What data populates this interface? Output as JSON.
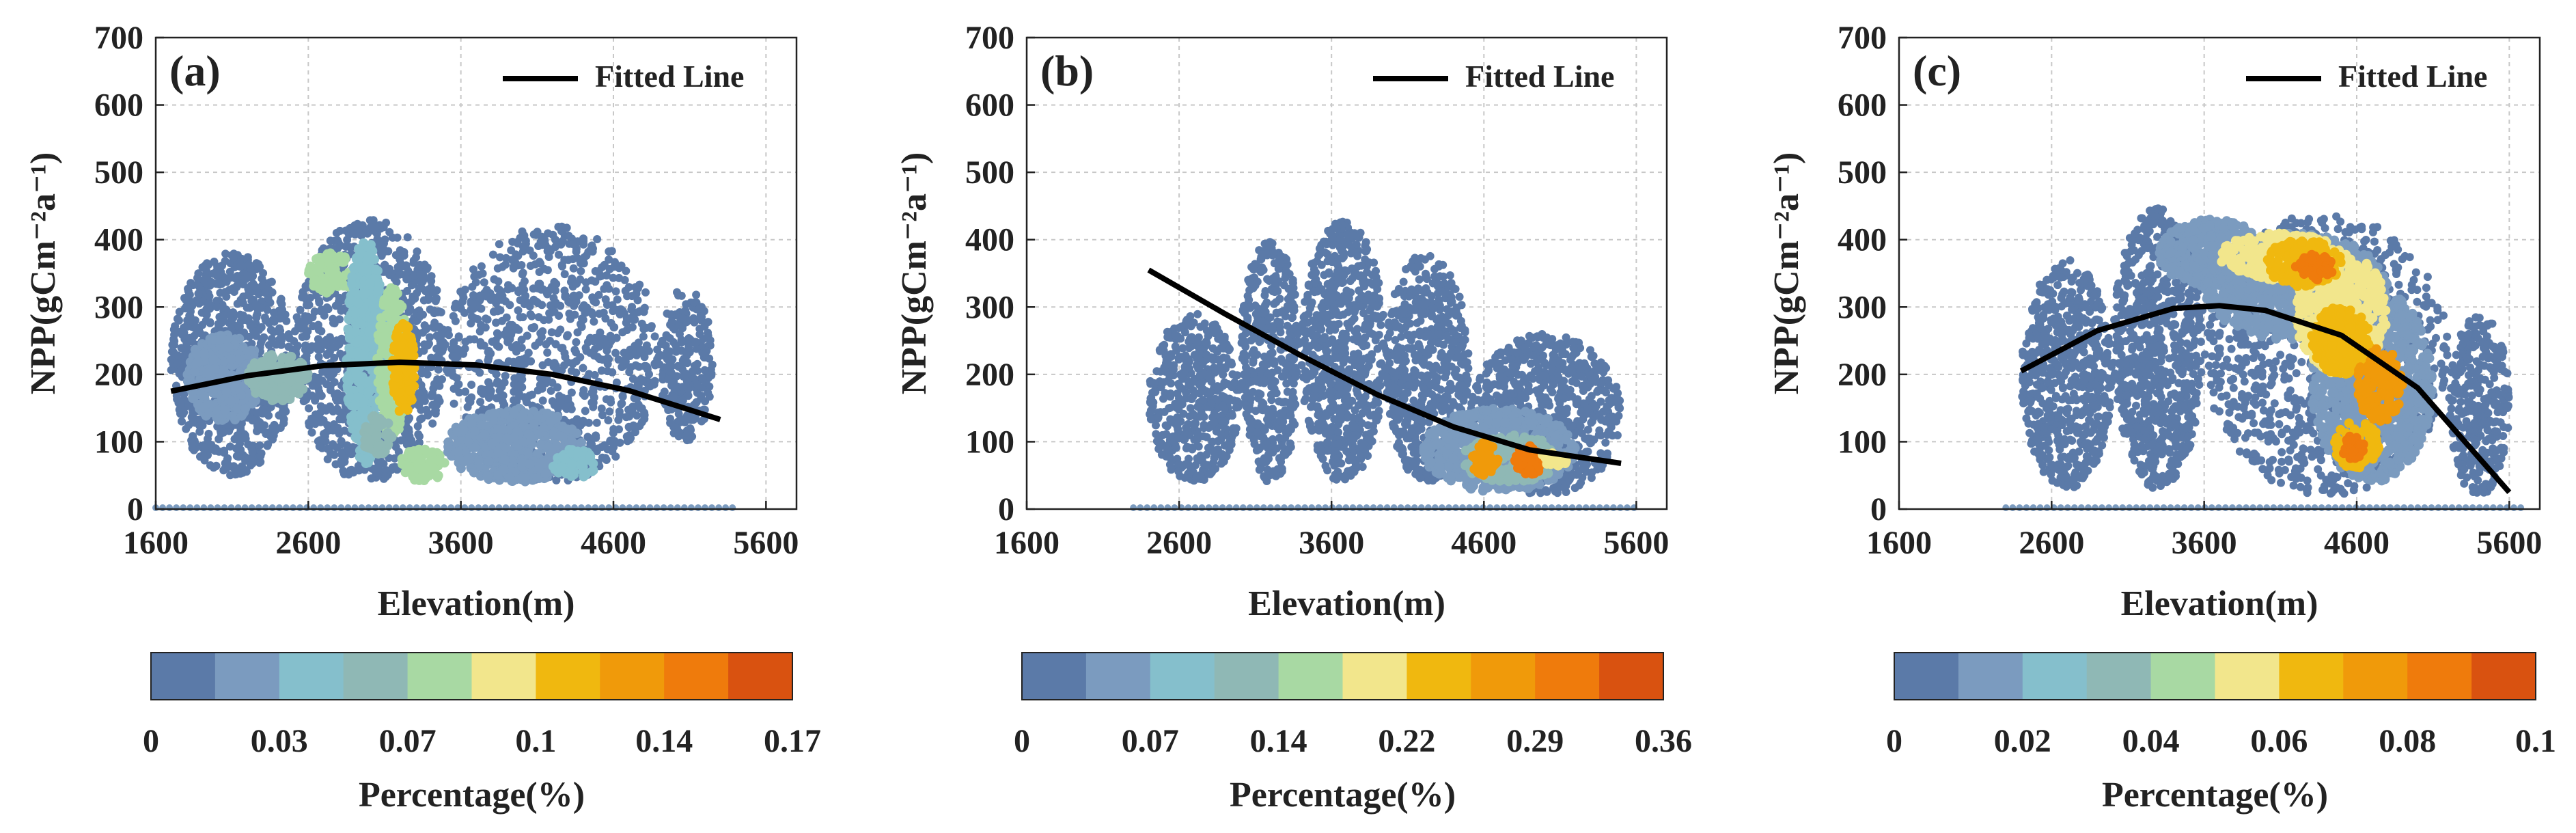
{
  "colormap": [
    "#5b7aa8",
    "#7b9bbf",
    "#85bfcc",
    "#8fb8b5",
    "#a8d9a3",
    "#f2e68c",
    "#f0b80f",
    "#f09a0a",
    "#ef7b0c",
    "#d95210"
  ],
  "fitted_line_color": "#000000",
  "chart_data": [
    {
      "type": "scatter",
      "panel_label": "(a)",
      "legend": "Fitted Line",
      "legend_position": "top-right",
      "xlabel": "Elevation(m)",
      "ylabel": "NPP(gCm⁻²a⁻¹)",
      "xlim": [
        1600,
        5800
      ],
      "ylim": [
        0,
        700
      ],
      "xticks": [
        1600,
        2600,
        3600,
        4600,
        5600
      ],
      "yticks": [
        0,
        100,
        200,
        300,
        400,
        500,
        600,
        700
      ],
      "grid": true,
      "fitted_line": {
        "x": [
          1700,
          2200,
          2700,
          3200,
          3700,
          4200,
          4700,
          5300
        ],
        "y": [
          175,
          198,
          213,
          218,
          214,
          200,
          176,
          133
        ]
      },
      "colorbar": {
        "label": "Percentage(%)",
        "min": 0,
        "max": 0.17,
        "tick_values": [
          0,
          0.034,
          0.068,
          0.102,
          0.136,
          0.17
        ],
        "tick_labels": [
          "0",
          "0.03",
          "0.07",
          "0.1",
          "0.14",
          "0.17"
        ]
      },
      "density_regions": [
        {
          "x": [
            1700,
            2500
          ],
          "y": [
            50,
            380
          ],
          "level": 0
        },
        {
          "x": [
            2500,
            3500
          ],
          "y": [
            40,
            430
          ],
          "level": 0
        },
        {
          "x": [
            3500,
            4900
          ],
          "y": [
            40,
            420
          ],
          "level": 0
        },
        {
          "x": [
            4900,
            5250
          ],
          "y": [
            100,
            330
          ],
          "level": 0
        },
        {
          "x": [
            1800,
            2300
          ],
          "y": [
            130,
            260
          ],
          "level": 1
        },
        {
          "x": [
            2200,
            2600
          ],
          "y": [
            160,
            230
          ],
          "level": 3
        },
        {
          "x": [
            2600,
            2900
          ],
          "y": [
            320,
            380
          ],
          "level": 4
        },
        {
          "x": [
            2850,
            3100
          ],
          "y": [
            60,
            400
          ],
          "level": 2
        },
        {
          "x": [
            3050,
            3250
          ],
          "y": [
            100,
            330
          ],
          "level": 4
        },
        {
          "x": [
            3150,
            3300
          ],
          "y": [
            140,
            280
          ],
          "level": 6
        },
        {
          "x": [
            2950,
            3150
          ],
          "y": [
            80,
            140
          ],
          "level": 3
        },
        {
          "x": [
            3200,
            3500
          ],
          "y": [
            40,
            90
          ],
          "level": 4
        },
        {
          "x": [
            3500,
            4400
          ],
          "y": [
            40,
            150
          ],
          "level": 1
        },
        {
          "x": [
            4200,
            4500
          ],
          "y": [
            45,
            90
          ],
          "level": 2
        }
      ]
    },
    {
      "type": "scatter",
      "panel_label": "(b)",
      "legend": "Fitted Line",
      "legend_position": "top-right",
      "xlabel": "Elevation(m)",
      "ylabel": "NPP(gCm⁻²a⁻¹)",
      "xlim": [
        1600,
        5800
      ],
      "ylim": [
        0,
        700
      ],
      "xticks": [
        1600,
        2600,
        3600,
        4600,
        5600
      ],
      "yticks": [
        0,
        100,
        200,
        300,
        400,
        500,
        600,
        700
      ],
      "grid": true,
      "fitted_line": {
        "x": [
          2400,
          2900,
          3400,
          3900,
          4400,
          4900,
          5500
        ],
        "y": [
          355,
          290,
          228,
          170,
          122,
          88,
          68
        ]
      },
      "colorbar": {
        "label": "Percentage(%)",
        "min": 0,
        "max": 0.36,
        "tick_values": [
          0,
          0.072,
          0.144,
          0.216,
          0.288,
          0.36
        ],
        "tick_labels": [
          "0",
          "0.07",
          "0.14",
          "0.22",
          "0.29",
          "0.36"
        ]
      },
      "density_regions": [
        {
          "x": [
            2400,
            3000
          ],
          "y": [
            40,
            290
          ],
          "level": 0
        },
        {
          "x": [
            3000,
            3400
          ],
          "y": [
            40,
            400
          ],
          "level": 0
        },
        {
          "x": [
            3400,
            3950
          ],
          "y": [
            40,
            430
          ],
          "level": 0
        },
        {
          "x": [
            3950,
            4500
          ],
          "y": [
            40,
            380
          ],
          "level": 0
        },
        {
          "x": [
            4500,
            5500
          ],
          "y": [
            20,
            260
          ],
          "level": 0
        },
        {
          "x": [
            4200,
            5200
          ],
          "y": [
            25,
            150
          ],
          "level": 1
        },
        {
          "x": [
            4450,
            5100
          ],
          "y": [
            40,
            110
          ],
          "level": 3
        },
        {
          "x": [
            4500,
            4700
          ],
          "y": [
            50,
            100
          ],
          "level": 7
        },
        {
          "x": [
            4800,
            5000
          ],
          "y": [
            50,
            95
          ],
          "level": 8
        },
        {
          "x": [
            4950,
            5150
          ],
          "y": [
            60,
            85
          ],
          "level": 5
        }
      ]
    },
    {
      "type": "scatter",
      "panel_label": "(c)",
      "legend": "Fitted Line",
      "legend_position": "top-right",
      "xlabel": "Elevation(m)",
      "ylabel": "NPP(gCm⁻²a⁻¹)",
      "xlim": [
        1600,
        5800
      ],
      "ylim": [
        0,
        700
      ],
      "xticks": [
        1600,
        2600,
        3600,
        4600,
        5600
      ],
      "yticks": [
        0,
        100,
        200,
        300,
        400,
        500,
        600,
        700
      ],
      "grid": true,
      "fitted_line": {
        "x": [
          2400,
          2900,
          3400,
          3700,
          4000,
          4500,
          5000,
          5600
        ],
        "y": [
          205,
          265,
          298,
          302,
          295,
          258,
          180,
          25
        ]
      },
      "colorbar": {
        "label": "Percentage(%)",
        "min": 0,
        "max": 0.1,
        "tick_values": [
          0,
          0.02,
          0.04,
          0.06,
          0.08,
          0.1
        ],
        "tick_labels": [
          "0",
          "0.02",
          "0.04",
          "0.06",
          "0.08",
          "0.1"
        ]
      },
      "density_regions": [
        {
          "x": [
            2400,
            3000
          ],
          "y": [
            30,
            370
          ],
          "level": 0
        },
        {
          "x": [
            3000,
            3600
          ],
          "y": [
            30,
            450
          ],
          "level": 0
        },
        {
          "x": [
            3600,
            5200
          ],
          "y": [
            20,
            440
          ],
          "level": 0
        },
        {
          "x": [
            5200,
            5600
          ],
          "y": [
            20,
            290
          ],
          "level": 0
        },
        {
          "x": [
            3300,
            4000
          ],
          "y": [
            330,
            430
          ],
          "level": 1
        },
        {
          "x": [
            3600,
            4800
          ],
          "y": [
            250,
            410
          ],
          "level": 1
        },
        {
          "x": [
            4300,
            5100
          ],
          "y": [
            40,
            330
          ],
          "level": 1
        },
        {
          "x": [
            3700,
            4500
          ],
          "y": [
            340,
            410
          ],
          "level": 5
        },
        {
          "x": [
            4200,
            4800
          ],
          "y": [
            200,
            380
          ],
          "level": 5
        },
        {
          "x": [
            4000,
            4500
          ],
          "y": [
            330,
            400
          ],
          "level": 6
        },
        {
          "x": [
            4300,
            4700
          ],
          "y": [
            200,
            300
          ],
          "level": 6
        },
        {
          "x": [
            4600,
            4900
          ],
          "y": [
            130,
            240
          ],
          "level": 7
        },
        {
          "x": [
            4450,
            4750
          ],
          "y": [
            60,
            130
          ],
          "level": 6
        },
        {
          "x": [
            4200,
            4450
          ],
          "y": [
            340,
            380
          ],
          "level": 8
        },
        {
          "x": [
            4500,
            4650
          ],
          "y": [
            70,
            110
          ],
          "level": 8
        }
      ]
    }
  ]
}
